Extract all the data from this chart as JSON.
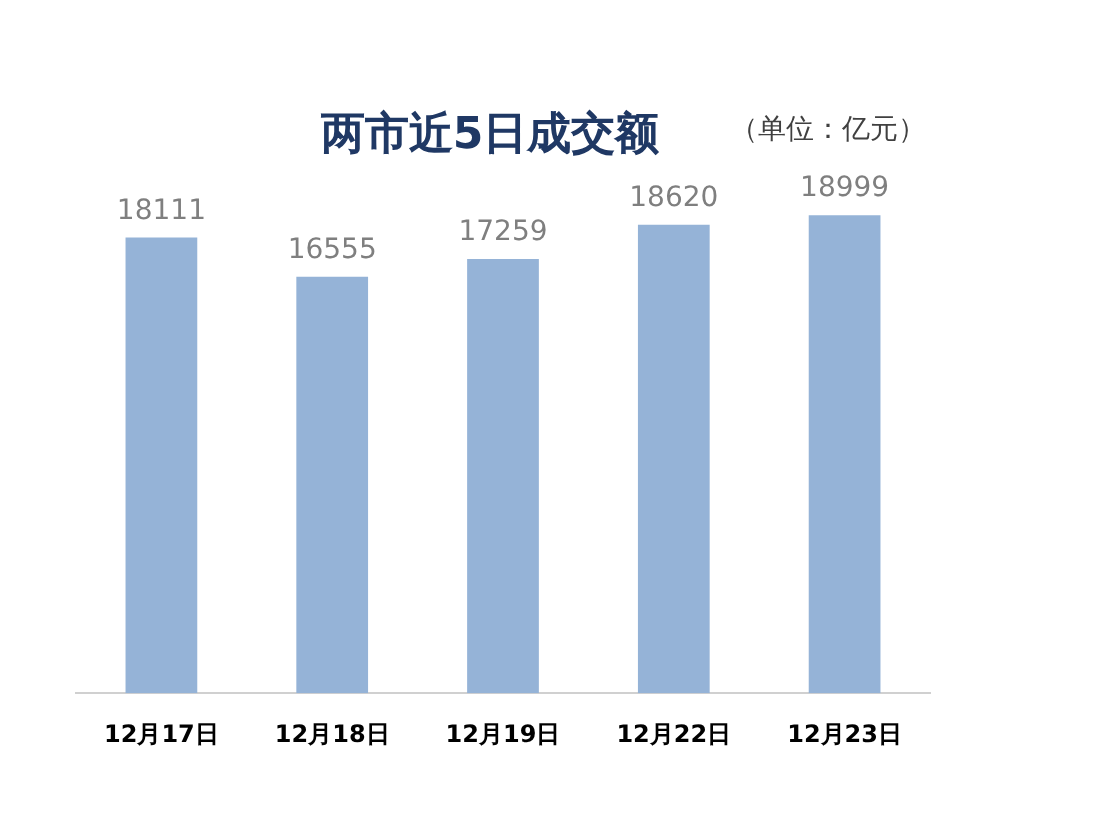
{
  "chart_data": {
    "type": "bar",
    "title": "两市近5日成交额",
    "annotations": [
      "（单位：亿元）"
    ],
    "categories": [
      "12月17日",
      "12月18日",
      "12月19日",
      "12月22日",
      "12月23日"
    ],
    "values": [
      18111,
      16555,
      17259,
      18620,
      18999
    ],
    "color": "#95b3d7",
    "data_labels": true,
    "grid": false,
    "legend": false
  }
}
